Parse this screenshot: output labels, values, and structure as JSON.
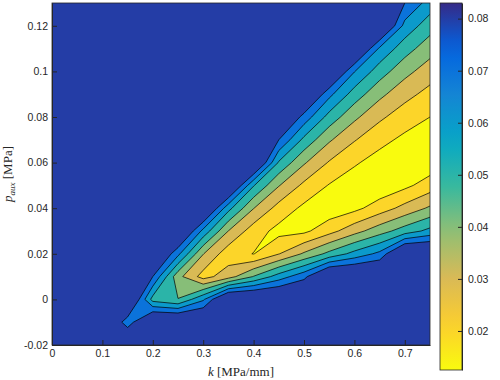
{
  "chart_data": {
    "type": "contour",
    "x_label": {
      "symbol": "k",
      "unit": "[MPa/mm]"
    },
    "y_label": {
      "symbol": "p",
      "subscript": "aux",
      "unit": "[MPa]"
    },
    "xlim": [
      0,
      0.75
    ],
    "xticks": [
      0,
      0.1,
      0.2,
      0.3,
      0.4,
      0.5,
      0.6,
      0.7
    ],
    "ylim": [
      -0.02,
      0.13
    ],
    "yticks": [
      -0.02,
      0,
      0.02,
      0.04,
      0.06,
      0.08,
      0.1,
      0.12
    ],
    "x": [
      0,
      0.05,
      0.1,
      0.15,
      0.2,
      0.25,
      0.3,
      0.35,
      0.4,
      0.45,
      0.5,
      0.55,
      0.6,
      0.65,
      0.7,
      0.75
    ],
    "y": [
      -0.02,
      -0.01,
      0,
      0.01,
      0.02,
      0.03,
      0.04,
      0.05,
      0.06,
      0.07,
      0.08,
      0.09,
      0.1,
      0.11,
      0.12,
      0.13
    ],
    "z": [
      [
        0.1,
        0.1,
        0.1,
        0.1,
        0.1,
        0.1,
        0.1,
        0.1,
        0.1,
        0.1,
        0.1,
        0.1,
        0.1,
        0.1,
        0.1,
        0.1
      ],
      [
        0.1,
        0.1,
        0.1,
        0.074,
        0.1,
        0.1,
        0.1,
        0.1,
        0.1,
        0.1,
        0.1,
        0.1,
        0.1,
        0.1,
        0.1,
        0.1
      ],
      [
        0.1,
        0.1,
        0.1,
        0.1,
        0.0562,
        0.0503,
        0.0684,
        0.1,
        0.1,
        0.1,
        0.1,
        0.1,
        0.1,
        0.1,
        0.1,
        0.1
      ],
      [
        0.1,
        0.1,
        0.1,
        0.1,
        0.08,
        0.0433,
        0.026,
        0.0356,
        0.0505,
        0.0646,
        0.077,
        0.1,
        0.1,
        0.1,
        0.1,
        0.1
      ],
      [
        0.1,
        0.1,
        0.1,
        0.1,
        0.1,
        0.0726,
        0.0404,
        0.024,
        0.0197,
        0.0296,
        0.0414,
        0.0528,
        0.0633,
        0.0726,
        0.1,
        0.1
      ],
      [
        0.1,
        0.1,
        0.1,
        0.1,
        0.1,
        0.1,
        0.067,
        0.0399,
        0.0248,
        0.0169,
        0.0178,
        0.0264,
        0.0363,
        0.0457,
        0.0547,
        0.0629
      ],
      [
        0.1,
        0.1,
        0.1,
        0.1,
        0.1,
        0.1,
        0.1,
        0.0633,
        0.0403,
        0.0262,
        0.0178,
        0.0137,
        0.0173,
        0.0249,
        0.0332,
        0.0416
      ],
      [
        0.1,
        0.1,
        0.1,
        0.1,
        0.1,
        0.1,
        0.1,
        0.1,
        0.0607,
        0.0406,
        0.0277,
        0.0194,
        0.0146,
        0.0127,
        0.0176,
        0.0247
      ],
      [
        0.1,
        0.1,
        0.1,
        0.1,
        0.1,
        0.1,
        0.1,
        0.1,
        0.1,
        0.0588,
        0.0412,
        0.0291,
        0.0212,
        0.016,
        0.0132,
        0.0139
      ],
      [
        0.1,
        0.1,
        0.1,
        0.1,
        0.1,
        0.1,
        0.1,
        0.1,
        0.1,
        0.08,
        0.0574,
        0.0414,
        0.0307,
        0.0229,
        0.0178,
        0.015
      ],
      [
        0.1,
        0.1,
        0.1,
        0.1,
        0.1,
        0.1,
        0.1,
        0.1,
        0.1,
        0.1,
        0.076,
        0.0563,
        0.0422,
        0.0319,
        0.0247,
        0.02
      ],
      [
        0.1,
        0.1,
        0.1,
        0.1,
        0.1,
        0.1,
        0.1,
        0.1,
        0.1,
        0.1,
        0.1,
        0.0728,
        0.0555,
        0.0426,
        0.0333,
        0.0267
      ],
      [
        0.1,
        0.1,
        0.1,
        0.1,
        0.1,
        0.1,
        0.1,
        0.1,
        0.1,
        0.1,
        0.1,
        0.1,
        0.0704,
        0.0549,
        0.0432,
        0.0348
      ],
      [
        0.1,
        0.1,
        0.1,
        0.1,
        0.1,
        0.1,
        0.1,
        0.1,
        0.1,
        0.1,
        0.1,
        0.1,
        0.1,
        0.0683,
        0.0544,
        0.0441
      ],
      [
        0.1,
        0.1,
        0.1,
        0.1,
        0.1,
        0.1,
        0.1,
        0.1,
        0.1,
        0.1,
        0.1,
        0.1,
        0.1,
        0.1,
        0.0667,
        0.0543
      ],
      [
        0.1,
        0.1,
        0.1,
        0.1,
        0.1,
        0.1,
        0.1,
        0.1,
        0.1,
        0.1,
        0.1,
        0.1,
        0.1,
        0.1,
        0.08,
        0.0655
      ]
    ],
    "levels": [
      0.02,
      0.03,
      0.04,
      0.05,
      0.06,
      0.07,
      0.08
    ],
    "colorbar": {
      "lim": [
        0.0125,
        0.083
      ],
      "ticks": [
        0.02,
        0.03,
        0.04,
        0.05,
        0.06,
        0.07,
        0.08
      ]
    }
  }
}
